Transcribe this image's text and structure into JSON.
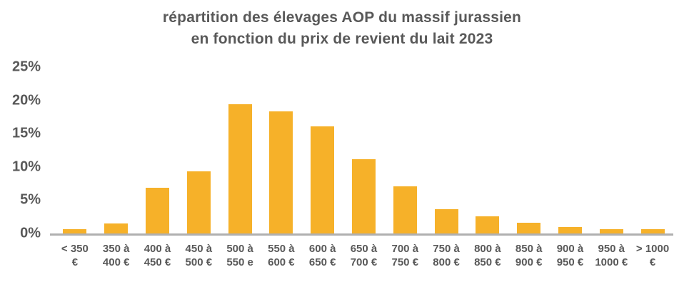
{
  "title": {
    "line1": "répartition des élevages AOP du massif jurassien",
    "line2": "en fonction du prix de revient du lait 2023"
  },
  "colors": {
    "bar": "#F6B129",
    "text": "#595959",
    "axis_line": "#B0B0B0",
    "background": "#FFFFFF"
  },
  "chart_data": {
    "type": "bar",
    "title": "répartition des élevages AOP du massif jurassien en fonction du prix de revient du lait 2023",
    "xlabel": "",
    "ylabel": "",
    "ylim": [
      0,
      25
    ],
    "grid": false,
    "legend": null,
    "yticks": [
      {
        "label": "0%",
        "value": 0
      },
      {
        "label": "5%",
        "value": 5
      },
      {
        "label": "10%",
        "value": 10
      },
      {
        "label": "15%",
        "value": 15
      },
      {
        "label": "20%",
        "value": 20
      },
      {
        "label": "25%",
        "value": 25
      }
    ],
    "categories": [
      "< 350 €",
      "350 à 400 €",
      "400 à 450 €",
      "450 à 500 €",
      "500 à 550 e",
      "550 à 600 €",
      "600 à 650 €",
      "650 à 700 €",
      "700 à 750 €",
      "750 à 800 €",
      "800 à 850 €",
      "850 à 900 €",
      "900 à 950 €",
      "950 à 1000 €",
      "> 1000 €"
    ],
    "categories_lines": [
      [
        "< 350",
        "€"
      ],
      [
        "350 à",
        "400 €"
      ],
      [
        "400 à",
        "450 €"
      ],
      [
        "450 à",
        "500 €"
      ],
      [
        "500 à",
        "550 e"
      ],
      [
        "550 à",
        "600 €"
      ],
      [
        "600 à",
        "650 €"
      ],
      [
        "650 à",
        "700 €"
      ],
      [
        "700 à",
        "750 €"
      ],
      [
        "750 à",
        "800 €"
      ],
      [
        "800 à",
        "850 €"
      ],
      [
        "850 à",
        "900 €"
      ],
      [
        "900 à",
        "950 €"
      ],
      [
        "950 à",
        "1000 €"
      ],
      [
        "> 1000",
        "€"
      ]
    ],
    "values": [
      0.6,
      1.5,
      6.9,
      9.3,
      19.4,
      18.4,
      16.1,
      11.2,
      7.1,
      3.6,
      2.6,
      1.6,
      1.0,
      0.6,
      0.6
    ]
  }
}
